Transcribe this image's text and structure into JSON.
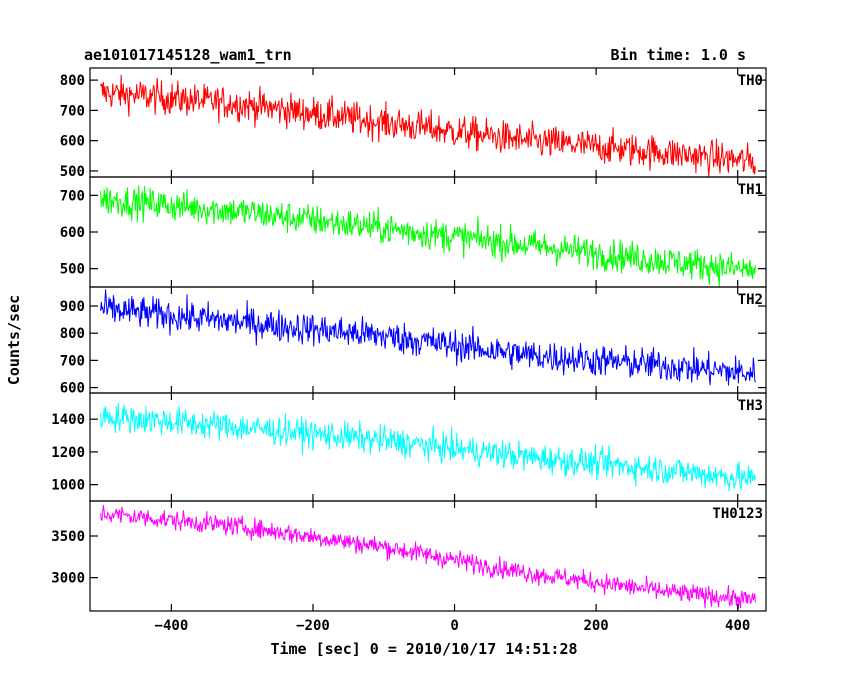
{
  "chart_data": {
    "type": "line",
    "title": "ae101017145128_wam1_trn",
    "subtitle": "Bin time: 1.0 s",
    "xlabel": "Time [sec] 0 = 2010/10/17 14:51:28",
    "ylabel": "Counts/sec",
    "xlim": [
      -515,
      440
    ],
    "x_range": [
      -500,
      425
    ],
    "x_ticks": [
      -400,
      -200,
      0,
      200,
      400
    ],
    "x_tick_labels": [
      "−400",
      "−200",
      "0",
      "200",
      "400"
    ],
    "panels": [
      {
        "name": "TH0",
        "color": "#ff0000",
        "ylim": [
          480,
          840
        ],
        "y_ticks": [
          500,
          600,
          700,
          800
        ],
        "trend": [
          [
            -500,
            760
          ],
          [
            -300,
            720
          ],
          [
            -100,
            660
          ],
          [
            100,
            600
          ],
          [
            300,
            560
          ],
          [
            425,
            530
          ]
        ],
        "noise": 28
      },
      {
        "name": "TH1",
        "color": "#00ff00",
        "ylim": [
          450,
          750
        ],
        "y_ticks": [
          500,
          600,
          700
        ],
        "trend": [
          [
            -500,
            690
          ],
          [
            -300,
            655
          ],
          [
            -100,
            610
          ],
          [
            100,
            565
          ],
          [
            300,
            520
          ],
          [
            425,
            495
          ]
        ],
        "noise": 22
      },
      {
        "name": "TH2",
        "color": "#0000ff",
        "ylim": [
          580,
          970
        ],
        "y_ticks": [
          600,
          700,
          800,
          900
        ],
        "trend": [
          [
            -500,
            890
          ],
          [
            -300,
            840
          ],
          [
            -100,
            790
          ],
          [
            100,
            720
          ],
          [
            300,
            680
          ],
          [
            425,
            650
          ]
        ],
        "noise": 30
      },
      {
        "name": "TH3",
        "color": "#00ffff",
        "ylim": [
          900,
          1560
        ],
        "y_ticks": [
          1000,
          1200,
          1400
        ],
        "trend": [
          [
            -500,
            1420
          ],
          [
            -300,
            1350
          ],
          [
            -100,
            1270
          ],
          [
            100,
            1170
          ],
          [
            300,
            1090
          ],
          [
            425,
            1030
          ]
        ],
        "noise": 45
      },
      {
        "name": "TH0123",
        "color": "#ff00ff",
        "ylim": [
          2600,
          3920
        ],
        "y_ticks": [
          3000,
          3500
        ],
        "trend": [
          [
            -500,
            3770
          ],
          [
            -300,
            3610
          ],
          [
            -100,
            3370
          ],
          [
            100,
            3060
          ],
          [
            300,
            2830
          ],
          [
            425,
            2730
          ]
        ],
        "noise": 60
      }
    ]
  }
}
